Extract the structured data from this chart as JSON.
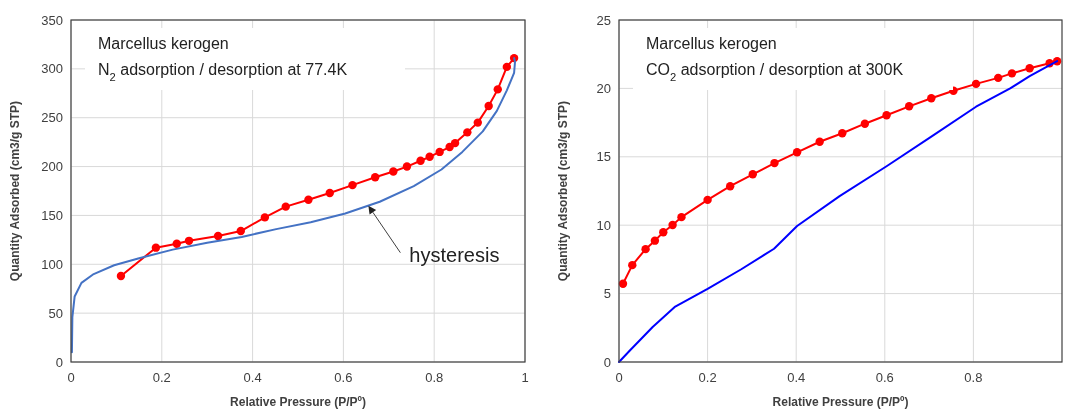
{
  "chart_data": [
    {
      "type": "line",
      "title": "Marcellus kerogen",
      "subtitle": "N$_{2}$ adsorption / desorption at 77.4K",
      "xlabel": "Relative Pressure (P/Pº)",
      "ylabel": "Quantity Adsorbed (cm3/g STP)",
      "xlim": [
        0,
        1
      ],
      "ylim": [
        0,
        350
      ],
      "xticks": [
        0,
        0.2,
        0.4,
        0.6,
        0.8,
        1
      ],
      "yticks": [
        0,
        50,
        100,
        150,
        200,
        250,
        300,
        350
      ],
      "grid": true,
      "annotations": [
        {
          "text": "hysteresis",
          "x": 0.655,
          "y": 160
        }
      ],
      "series": [
        {
          "color": "#ff0000",
          "marker": "circle",
          "x": [
            0.11,
            0.187,
            0.233,
            0.26,
            0.324,
            0.374,
            0.427,
            0.473,
            0.523,
            0.57,
            0.62,
            0.67,
            0.71,
            0.74,
            0.77,
            0.79,
            0.812,
            0.834,
            0.846,
            0.873,
            0.896,
            0.92,
            0.94,
            0.96,
            0.976
          ],
          "values": [
            88,
            117,
            121,
            124,
            129,
            134,
            148,
            159,
            166,
            173,
            181,
            189,
            195,
            200,
            206,
            210,
            215,
            220,
            224,
            235,
            245,
            262,
            279,
            302,
            311
          ]
        },
        {
          "color": "#4472c4",
          "marker": "none",
          "x": [
            0.002,
            0.003,
            0.008,
            0.023,
            0.05,
            0.095,
            0.148,
            0.224,
            0.3,
            0.376,
            0.452,
            0.528,
            0.604,
            0.68,
            0.755,
            0.816,
            0.862,
            0.907,
            0.938,
            0.96,
            0.976,
            0.978,
            0.976
          ],
          "values": [
            10,
            46,
            67,
            81,
            90,
            99,
            106,
            115,
            122,
            128,
            136,
            143,
            152,
            164,
            180,
            197,
            215,
            236,
            257,
            278,
            296,
            307,
            311
          ]
        }
      ]
    },
    {
      "type": "line",
      "title": "Marcellus kerogen",
      "subtitle": "CO$_{2}$ adsorption / desorption at 300K",
      "xlabel": "Relative Pressure (P/Pº)",
      "ylabel": "Quantity Adsorbed (cm3/g STP)",
      "xlim": [
        0,
        1
      ],
      "ylim": [
        0,
        25
      ],
      "xticks": [
        0,
        0.2,
        0.4,
        0.6,
        0.8
      ],
      "yticks": [
        0,
        5,
        10,
        15,
        20,
        25
      ],
      "grid": true,
      "series": [
        {
          "color": "#ff0000",
          "marker": "circle",
          "x": [
            0.009,
            0.03,
            0.06,
            0.081,
            0.1,
            0.121,
            0.141,
            0.2,
            0.251,
            0.302,
            0.351,
            0.402,
            0.453,
            0.504,
            0.555,
            0.604,
            0.655,
            0.705,
            0.755,
            0.806,
            0.856,
            0.887,
            0.927,
            0.972,
            0.989
          ],
          "values": [
            5.72,
            7.08,
            8.25,
            8.87,
            9.49,
            10.01,
            10.59,
            11.85,
            12.85,
            13.72,
            14.54,
            15.33,
            16.1,
            16.72,
            17.42,
            18.04,
            18.69,
            19.28,
            19.83,
            20.33,
            20.77,
            21.1,
            21.47,
            21.84,
            21.99
          ]
        },
        {
          "color": "#0000ff",
          "marker": "none",
          "x": [
            0,
            0.024,
            0.076,
            0.127,
            0.2,
            0.276,
            0.35,
            0.402,
            0.498,
            0.604,
            0.705,
            0.806,
            0.883,
            0.927,
            0.989
          ],
          "values": [
            0,
            0.82,
            2.56,
            4.05,
            5.34,
            6.78,
            8.28,
            9.94,
            12.13,
            14.31,
            16.48,
            18.66,
            20.0,
            20.9,
            22.0
          ]
        }
      ]
    }
  ]
}
